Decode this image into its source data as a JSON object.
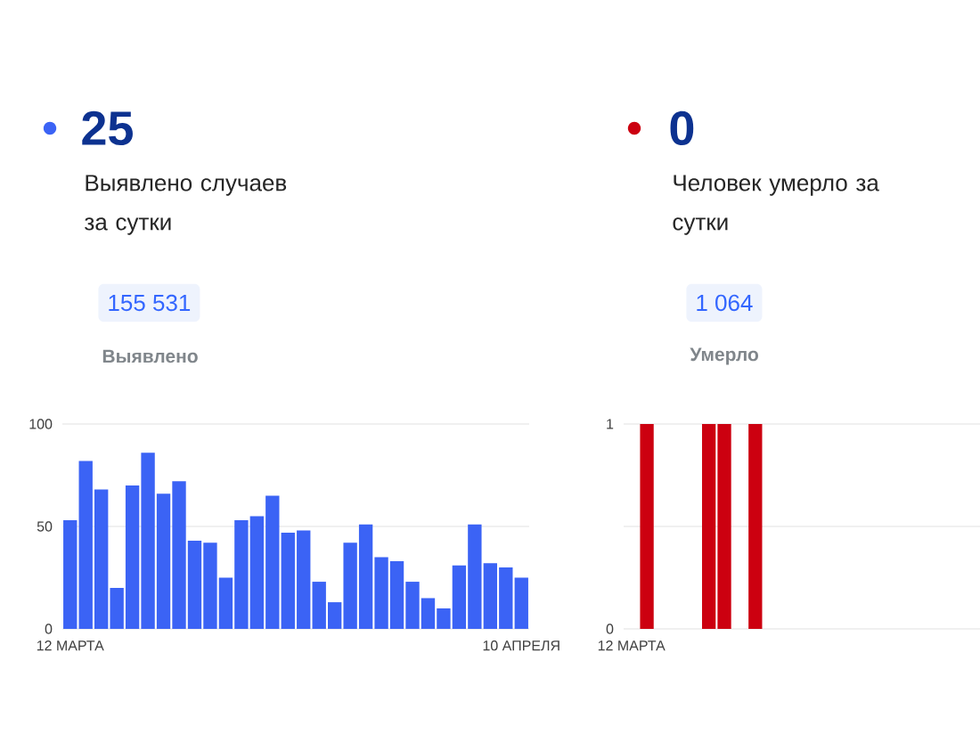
{
  "chart_data": [
    {
      "type": "bar",
      "title": "25",
      "subtitle": "Выявлено случаев за сутки",
      "annotations": [
        "155 531",
        "Выявлено"
      ],
      "categories": [
        "12 МАРТА",
        null,
        null,
        null,
        null,
        null,
        null,
        null,
        null,
        null,
        null,
        null,
        null,
        null,
        null,
        null,
        null,
        null,
        null,
        null,
        null,
        null,
        null,
        null,
        null,
        null,
        null,
        null,
        null,
        "10 АПРЕЛЯ"
      ],
      "series": [
        {
          "color": "#3b63f5",
          "values": [
            53,
            82,
            68,
            20,
            70,
            86,
            66,
            72,
            43,
            42,
            25,
            53,
            55,
            65,
            47,
            48,
            23,
            13,
            42,
            51,
            35,
            33,
            23,
            15,
            10,
            31,
            51,
            32,
            30,
            25
          ]
        }
      ],
      "ylim": [
        0,
        100
      ],
      "yticks": [
        0,
        50,
        100
      ],
      "grid": "y"
    },
    {
      "type": "bar",
      "title": "0",
      "subtitle": "Человек умерло за сутки",
      "annotations": [
        "1 064",
        "Умерло"
      ],
      "categories": [
        "12 МАРТА",
        null,
        null,
        null,
        null,
        null,
        null,
        null,
        null,
        null,
        null,
        null,
        null,
        null,
        null,
        null,
        null,
        null,
        null,
        null,
        null,
        null,
        null
      ],
      "series": [
        {
          "color": "#cc0010",
          "values": [
            0,
            1,
            0,
            0,
            0,
            1,
            1,
            0,
            1,
            0,
            0,
            0,
            0,
            0,
            0,
            0,
            0,
            0,
            0,
            0,
            0,
            0,
            0
          ]
        }
      ],
      "ylim": [
        0,
        1
      ],
      "yticks": [
        0,
        {
          "value": 0.5,
          "label": null
        },
        1
      ],
      "grid": "y"
    }
  ]
}
